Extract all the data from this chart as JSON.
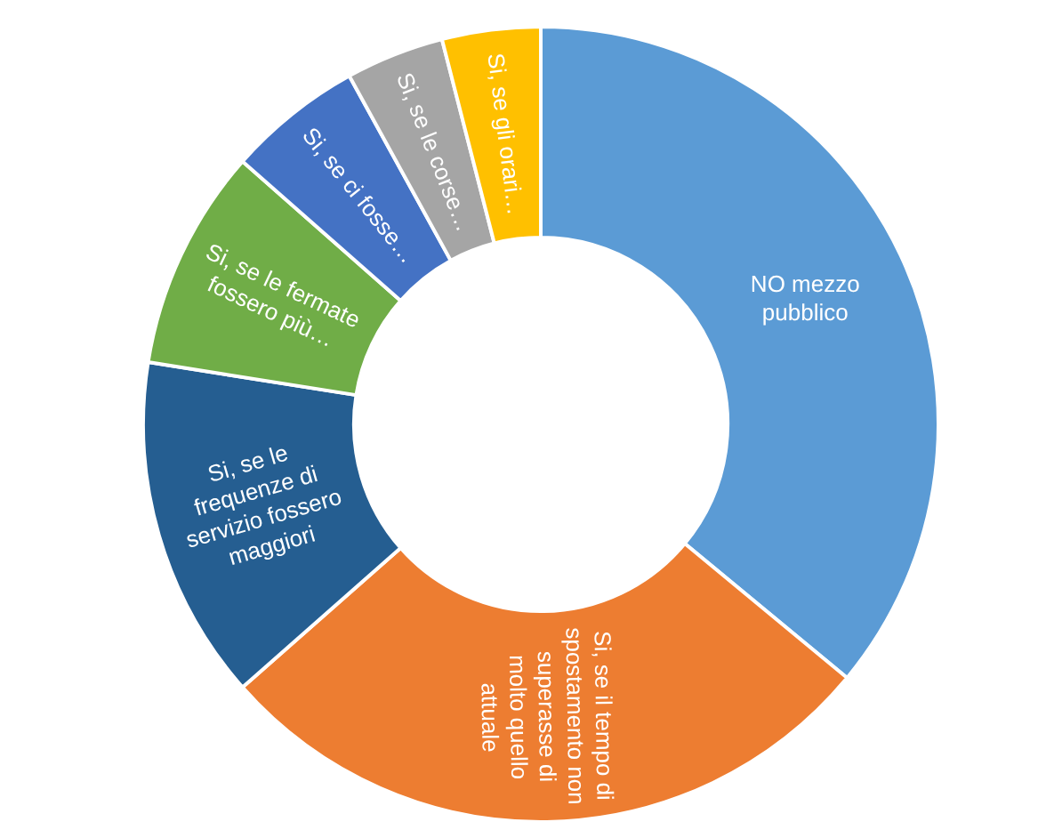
{
  "chart_data": {
    "type": "donut",
    "categories": [
      "NO mezzo pubblico",
      "Si, se il tempo di spostamento non superasse di molto quello attuale",
      "Si, se le frequenze di servizio fossero maggiori",
      "Si, se le fermate fossero più…",
      "Si, se ci fosse…",
      "Si, se le corse…",
      "Si, se gli orari…"
    ],
    "values": [
      36,
      27.5,
      14,
      9,
      5.5,
      4,
      4
    ],
    "colors": [
      "#5b9bd5",
      "#ed7d31",
      "#255e91",
      "#70ad47",
      "#4472c4",
      "#a5a5a5",
      "#ffc000"
    ],
    "legend": false
  }
}
